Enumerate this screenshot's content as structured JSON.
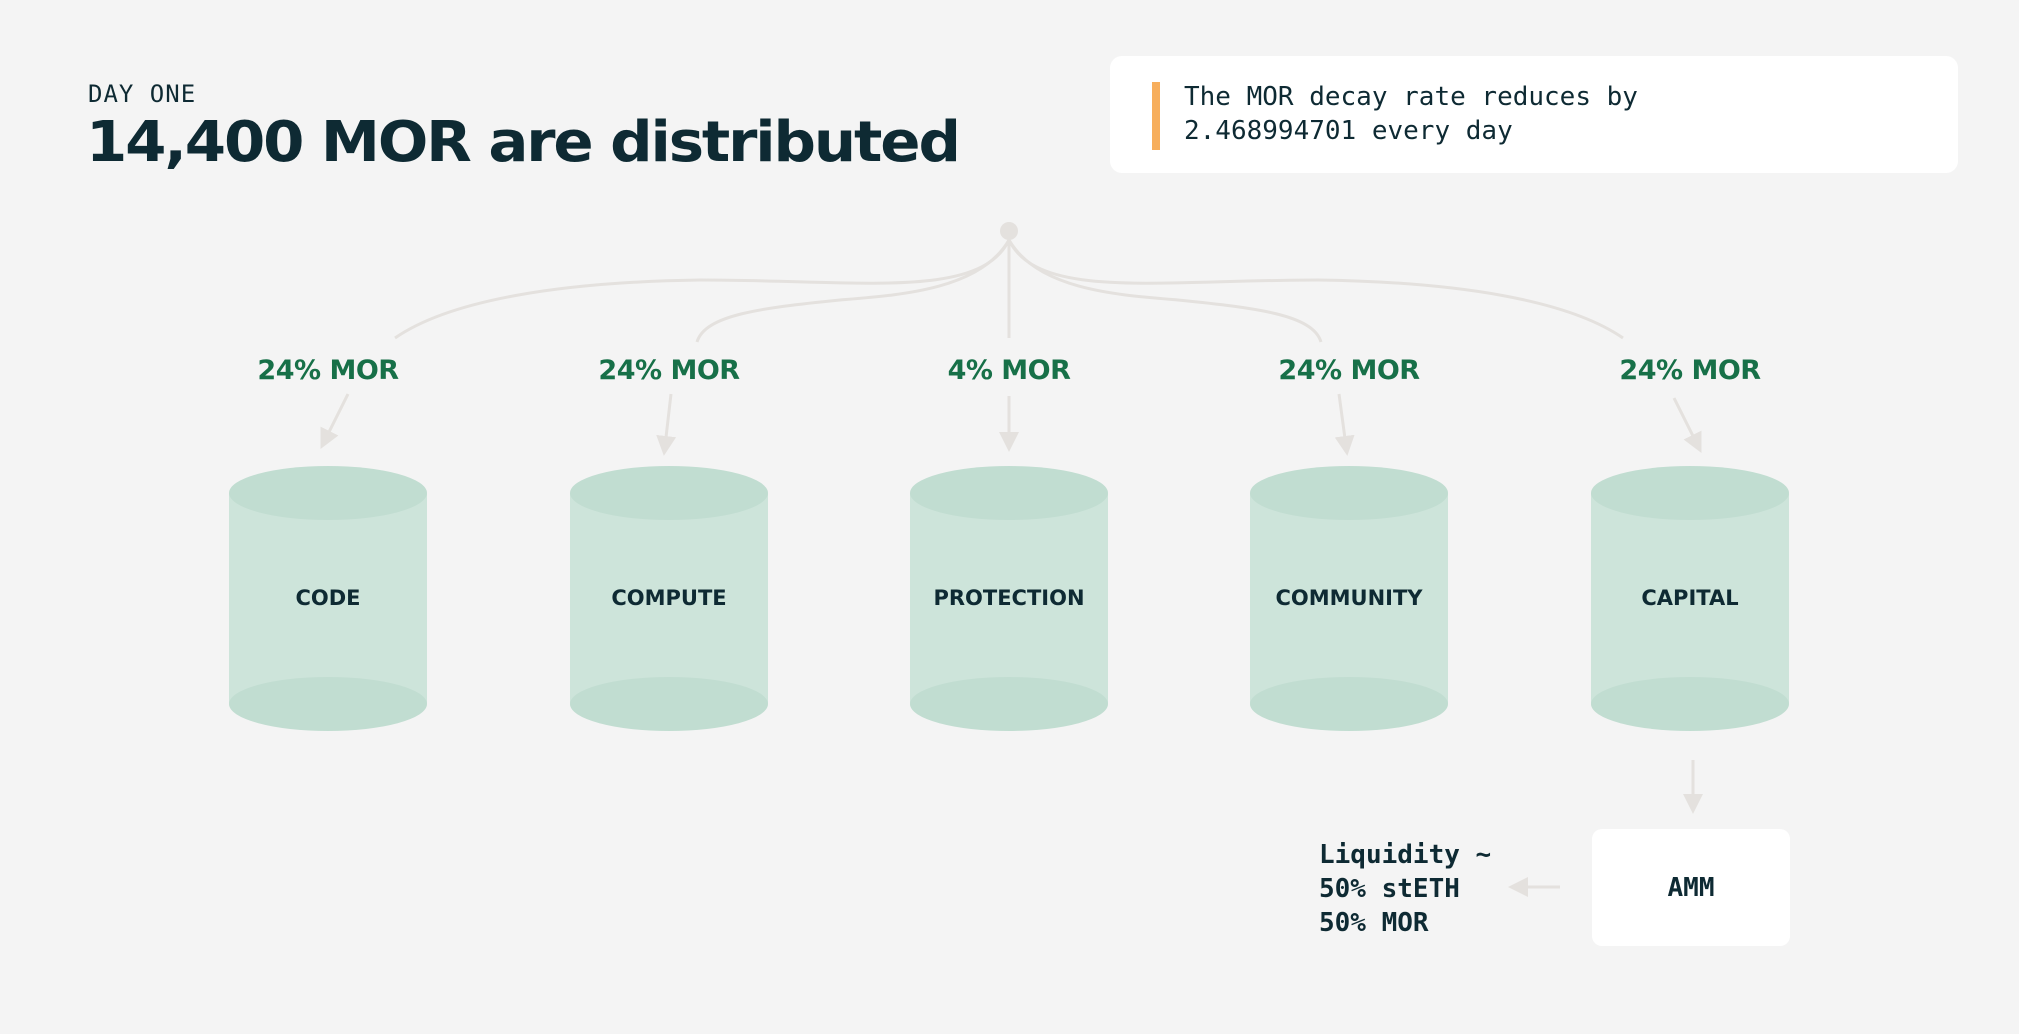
{
  "header": {
    "eyebrow": "DAY ONE",
    "title": "14,400 MOR are distributed"
  },
  "callout": {
    "text": "The MOR decay rate reduces by\n2.468994701 every day",
    "accent_color": "#f7ae5c"
  },
  "pools": [
    {
      "name": "CODE",
      "share": "24% MOR"
    },
    {
      "name": "COMPUTE",
      "share": "24% MOR"
    },
    {
      "name": "PROTECTION",
      "share": "4% MOR"
    },
    {
      "name": "COMMUNITY",
      "share": "24% MOR"
    },
    {
      "name": "CAPITAL",
      "share": "24% MOR"
    }
  ],
  "amm": {
    "label": "AMM",
    "liquidity": [
      "Liquidity ~",
      "50% stETH",
      "50% MOR"
    ]
  },
  "colors": {
    "background": "#f4f4f4",
    "text_dark": "#0e2a33",
    "share_green": "#177048",
    "cylinder_body": "#cde4da",
    "cylinder_cap": "#c1ddd1",
    "connector": "#e4e1de"
  }
}
